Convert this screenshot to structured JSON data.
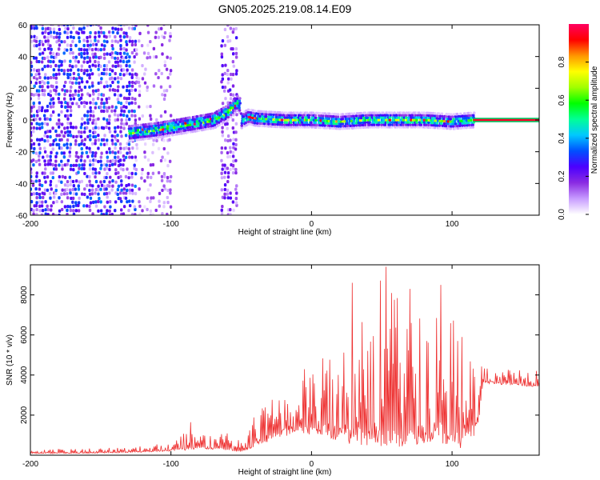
{
  "figure": {
    "title": "GN05.2025.219.08.14.E09"
  },
  "chart_data": [
    {
      "type": "heatmap",
      "xlabel": "Height of straight line (km)",
      "ylabel": "Frequency (Hz)",
      "xlim": [
        -200,
        162
      ],
      "ylim": [
        -60,
        60
      ],
      "x_ticks": [
        -200,
        -100,
        0,
        100
      ],
      "y_ticks": [
        -60,
        -40,
        -20,
        0,
        20,
        40,
        60
      ],
      "colorbar": {
        "label": "Normalized spectral amplitude",
        "range": [
          0.0,
          1.0
        ],
        "ticks": [
          0.0,
          0.2,
          0.4,
          0.6,
          0.8
        ],
        "colors": [
          "#ffffff",
          "#c79bff",
          "#8a2be2",
          "#4b00ff",
          "#0050ff",
          "#00c8ff",
          "#00ff96",
          "#00ff00",
          "#a0ff00",
          "#ffff00",
          "#ff9600",
          "#ff0000",
          "#ff0060"
        ]
      },
      "regions": [
        {
          "name": "broadband noise",
          "x_range": [
            -200,
            -125
          ],
          "f_range": [
            -60,
            60
          ],
          "amplitude": 0.2
        },
        {
          "name": "weak scatter",
          "x_range": [
            -125,
            -100
          ],
          "f_range": [
            -60,
            60
          ],
          "amplitude": 0.1
        },
        {
          "name": "vertical stripe",
          "x_range": [
            -64,
            -54
          ],
          "f_range": [
            -60,
            60
          ],
          "amplitude": 0.15
        },
        {
          "name": "signal band",
          "x_range": [
            -130,
            115
          ],
          "f_range": [
            -10,
            15
          ],
          "amplitude": 0.6
        },
        {
          "name": "steady tone",
          "x_range": [
            115,
            162
          ],
          "f_range": [
            -1,
            1
          ],
          "amplitude": 0.95
        }
      ],
      "ridge": {
        "x": [
          -130,
          -110,
          -90,
          -70,
          -60,
          -52,
          -50,
          -45,
          -40,
          -20,
          0,
          20,
          40,
          60,
          80,
          100,
          115
        ],
        "freq_hz": [
          -8,
          -6,
          -3,
          0,
          5,
          12,
          0,
          2,
          1,
          0,
          0,
          -1,
          0,
          0,
          0,
          -1,
          0
        ]
      }
    },
    {
      "type": "line",
      "xlabel": "Height of straight line (km)",
      "ylabel": "SNR (10 * v/v)",
      "xlim": [
        -200,
        162
      ],
      "ylim": [
        0,
        9500
      ],
      "x_ticks": [
        -200,
        -100,
        0,
        100
      ],
      "y_ticks": [
        2000,
        4000,
        6000,
        8000
      ],
      "color": "#ee3333",
      "envelope": {
        "x": [
          -200,
          -150,
          -120,
          -100,
          -90,
          -80,
          -60,
          -50,
          -45,
          -40,
          -30,
          -20,
          -10,
          0,
          10,
          20,
          30,
          40,
          50,
          60,
          70,
          80,
          90,
          100,
          110,
          118,
          122,
          140,
          162
        ],
        "low": [
          80,
          100,
          150,
          200,
          250,
          300,
          250,
          150,
          200,
          400,
          700,
          900,
          1100,
          1000,
          900,
          700,
          500,
          500,
          400,
          300,
          500,
          600,
          700,
          300,
          400,
          1000,
          3600,
          3500,
          3400
        ],
        "high": [
          300,
          350,
          450,
          700,
          1300,
          1200,
          1100,
          700,
          1500,
          2200,
          2700,
          3600,
          4000,
          4700,
          5000,
          6500,
          7500,
          8300,
          9300,
          8000,
          7000,
          7200,
          7800,
          7600,
          6800,
          5200,
          4400,
          4300,
          4200
        ]
      },
      "peaks": [
        {
          "x": -86,
          "y": 1650
        },
        {
          "x": 29,
          "y": 8600
        },
        {
          "x": 53,
          "y": 9400
        },
        {
          "x": 70,
          "y": 8300
        },
        {
          "x": 92,
          "y": 8500
        }
      ]
    }
  ]
}
